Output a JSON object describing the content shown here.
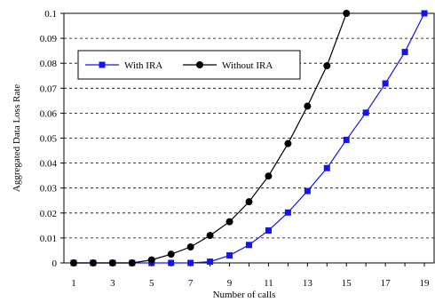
{
  "chart_data": {
    "type": "line",
    "title": "",
    "xlabel": "Number of calls",
    "ylabel": "Aggregated Data Loss Rate",
    "x": [
      1,
      2,
      3,
      4,
      5,
      6,
      7,
      8,
      9,
      10,
      11,
      12,
      13,
      14,
      15,
      16,
      17,
      18,
      19
    ],
    "x_tick_labels": [
      "1",
      "3",
      "5",
      "7",
      "9",
      "11",
      "13",
      "15",
      "17",
      "19"
    ],
    "y_tick_labels": [
      "0",
      "0.01",
      "0.02",
      "0.03",
      "0.04",
      "0.05",
      "0.06",
      "0.07",
      "0.08",
      "0.09",
      "0.1"
    ],
    "xlim": [
      0.5,
      19.5
    ],
    "ylim": [
      0,
      0.1
    ],
    "grid": "horizontal dashed",
    "legend_position": "top-left",
    "series": [
      {
        "name": "With IRA",
        "color": "#1414f0",
        "marker": "square",
        "x": [
          1,
          2,
          3,
          4,
          5,
          6,
          7,
          8,
          9,
          10,
          11,
          12,
          13,
          14,
          15,
          16,
          17,
          18,
          19
        ],
        "values": [
          0,
          0,
          0,
          0,
          0,
          0,
          0,
          0.0005,
          0.003,
          0.0072,
          0.013,
          0.0202,
          0.0288,
          0.038,
          0.0493,
          0.0602,
          0.0719,
          0.0845,
          0.1
        ]
      },
      {
        "name": "Without IRA",
        "color": "#000000",
        "marker": "circle",
        "x": [
          1,
          2,
          3,
          4,
          5,
          6,
          7,
          8,
          9,
          10,
          11,
          12,
          13,
          14,
          15
        ],
        "values": [
          0,
          0,
          0,
          0,
          0.0012,
          0.0035,
          0.0064,
          0.011,
          0.0165,
          0.0245,
          0.0348,
          0.0478,
          0.0628,
          0.079,
          0.1
        ]
      }
    ]
  }
}
